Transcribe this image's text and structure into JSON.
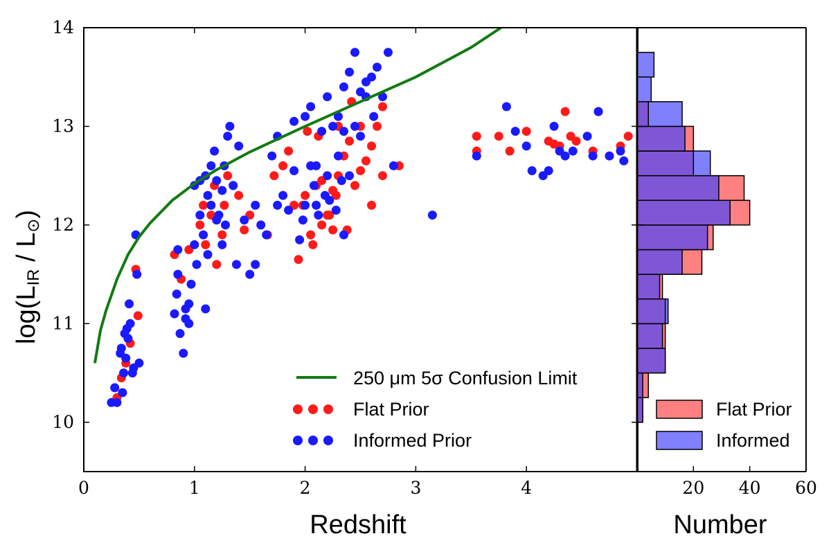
{
  "colors": {
    "flat": "#ff1a1a",
    "informed": "#1a1aff",
    "limit": "#127a12",
    "hist_flat": "#ff8080",
    "hist_informed": "#7f56d6",
    "hist_informed_only": "#8080ff"
  },
  "chart_data": [
    {
      "type": "scatter",
      "xlabel": "Redshift",
      "ylabel_main": "log(L",
      "ylabel_sub": "IR",
      "ylabel_mid": " / L",
      "ylabel_sun": "⊙",
      "ylabel_end": ")",
      "xlim": [
        0,
        5.0
      ],
      "ylim": [
        9.5,
        14.0
      ],
      "xticks": [
        0,
        1,
        2,
        3,
        4
      ],
      "yticks": [
        10,
        11,
        12,
        13,
        14
      ],
      "legend": {
        "limit_label": "250 μm 5σ Confusion Limit",
        "flat_label": "Flat Prior",
        "informed_label": "Informed Prior"
      },
      "confusion_limit": {
        "x": [
          0.1,
          0.15,
          0.2,
          0.3,
          0.4,
          0.5,
          0.6,
          0.8,
          1.0,
          1.2,
          1.5,
          2.0,
          2.5,
          3.0,
          3.5,
          3.77
        ],
        "y": [
          10.6,
          10.93,
          11.13,
          11.45,
          11.7,
          11.88,
          12.02,
          12.25,
          12.42,
          12.56,
          12.74,
          13.0,
          13.25,
          13.5,
          13.8,
          14.0
        ]
      },
      "series": [
        {
          "name": "Flat Prior",
          "points": [
            [
              0.34,
              10.45
            ],
            [
              0.38,
              10.6
            ],
            [
              0.42,
              10.8
            ],
            [
              0.47,
              11.55
            ],
            [
              0.49,
              11.08
            ],
            [
              0.3,
              10.25
            ],
            [
              0.82,
              11.7
            ],
            [
              0.88,
              11.45
            ],
            [
              0.95,
              11.75
            ],
            [
              1.05,
              12.0
            ],
            [
              1.1,
              11.8
            ],
            [
              1.15,
              12.1
            ],
            [
              1.2,
              11.6
            ],
            [
              1.27,
              12.2
            ],
            [
              1.3,
              12.5
            ],
            [
              1.35,
              12.4
            ],
            [
              1.4,
              12.3
            ],
            [
              1.45,
              11.95
            ],
            [
              1.5,
              12.1
            ],
            [
              1.18,
              12.4
            ],
            [
              1.25,
              11.9
            ],
            [
              1.08,
              12.2
            ],
            [
              1.66,
              11.9
            ],
            [
              1.72,
              12.5
            ],
            [
              1.8,
              12.6
            ],
            [
              1.85,
              12.75
            ],
            [
              1.9,
              12.2
            ],
            [
              1.94,
              11.65
            ],
            [
              2.0,
              12.3
            ],
            [
              2.05,
              11.9
            ],
            [
              2.1,
              12.4
            ],
            [
              2.15,
              12.0
            ],
            [
              2.2,
              12.1
            ],
            [
              2.25,
              11.95
            ],
            [
              2.3,
              12.5
            ],
            [
              2.35,
              12.7
            ],
            [
              2.4,
              12.85
            ],
            [
              2.45,
              12.4
            ],
            [
              2.5,
              12.55
            ],
            [
              2.55,
              12.65
            ],
            [
              2.6,
              12.8
            ],
            [
              2.65,
              13.0
            ],
            [
              2.7,
              12.5
            ],
            [
              2.5,
              13.0
            ],
            [
              2.3,
              13.0
            ],
            [
              2.12,
              12.9
            ],
            [
              2.02,
              12.95
            ],
            [
              2.22,
              12.1
            ],
            [
              2.28,
              12.3
            ],
            [
              2.15,
              12.45
            ],
            [
              2.42,
              13.25
            ],
            [
              2.7,
              13.2
            ],
            [
              2.85,
              12.6
            ],
            [
              2.6,
              12.2
            ],
            [
              2.07,
              11.8
            ],
            [
              2.25,
              12.35
            ],
            [
              1.98,
              12.2
            ],
            [
              2.38,
              11.95
            ],
            [
              3.55,
              12.9
            ],
            [
              3.55,
              12.75
            ],
            [
              3.75,
              12.9
            ],
            [
              3.85,
              12.75
            ],
            [
              4.0,
              12.95
            ],
            [
              4.2,
              12.85
            ],
            [
              4.25,
              12.82
            ],
            [
              4.3,
              12.8
            ],
            [
              4.4,
              12.9
            ],
            [
              4.45,
              12.85
            ],
            [
              4.35,
              13.15
            ],
            [
              4.6,
              12.75
            ],
            [
              4.65,
              13.15
            ],
            [
              4.75,
              12.7
            ],
            [
              4.85,
              12.8
            ],
            [
              4.92,
              12.9
            ]
          ]
        },
        {
          "name": "Informed Prior",
          "points": [
            [
              0.25,
              10.2
            ],
            [
              0.28,
              10.35
            ],
            [
              0.3,
              10.2
            ],
            [
              0.35,
              10.3
            ],
            [
              0.36,
              10.5
            ],
            [
              0.38,
              10.65
            ],
            [
              0.4,
              10.85
            ],
            [
              0.42,
              11.0
            ],
            [
              0.45,
              10.55
            ],
            [
              0.37,
              10.9
            ],
            [
              0.34,
              10.75
            ],
            [
              0.41,
              11.2
            ],
            [
              0.44,
              10.5
            ],
            [
              0.48,
              11.5
            ],
            [
              0.5,
              10.6
            ],
            [
              0.47,
              11.9
            ],
            [
              0.33,
              10.7
            ],
            [
              0.39,
              10.95
            ],
            [
              0.82,
              11.1
            ],
            [
              0.84,
              11.3
            ],
            [
              0.85,
              11.5
            ],
            [
              0.87,
              10.9
            ],
            [
              0.9,
              10.7
            ],
            [
              0.92,
              11.05
            ],
            [
              0.95,
              11.2
            ],
            [
              0.97,
              11.4
            ],
            [
              1.0,
              11.8
            ],
            [
              1.02,
              11.6
            ],
            [
              1.05,
              12.1
            ],
            [
              1.08,
              11.9
            ],
            [
              1.1,
              12.5
            ],
            [
              1.12,
              12.3
            ],
            [
              1.15,
              12.2
            ],
            [
              1.18,
              12.75
            ],
            [
              1.2,
              12.45
            ],
            [
              1.22,
              12.1
            ],
            [
              1.25,
              11.8
            ],
            [
              1.27,
              12.6
            ],
            [
              1.3,
              12.9
            ],
            [
              1.32,
              13.0
            ],
            [
              1.35,
              12.4
            ],
            [
              1.38,
              11.6
            ],
            [
              1.4,
              12.8
            ],
            [
              1.45,
              12.05
            ],
            [
              1.5,
              11.5
            ],
            [
              1.55,
              11.6
            ],
            [
              1.0,
              12.4
            ],
            [
              1.1,
              11.15
            ],
            [
              0.85,
              11.75
            ],
            [
              0.95,
              11.0
            ],
            [
              1.12,
              11.7
            ],
            [
              1.2,
              12.05
            ],
            [
              1.25,
              12.35
            ],
            [
              1.7,
              12.7
            ],
            [
              1.75,
              12.9
            ],
            [
              1.8,
              12.3
            ],
            [
              1.85,
              12.15
            ],
            [
              1.9,
              12.55
            ],
            [
              1.95,
              11.85
            ],
            [
              2.0,
              13.1
            ],
            [
              2.05,
              12.6
            ],
            [
              2.1,
              12.2
            ],
            [
              2.15,
              12.95
            ],
            [
              2.2,
              12.5
            ],
            [
              2.25,
              13.0
            ],
            [
              2.3,
              12.7
            ],
            [
              2.35,
              13.4
            ],
            [
              2.4,
              13.55
            ],
            [
              2.45,
              13.75
            ],
            [
              2.5,
              13.35
            ],
            [
              2.55,
              13.3
            ],
            [
              2.6,
              13.5
            ],
            [
              2.65,
              13.6
            ],
            [
              2.7,
              13.3
            ],
            [
              2.75,
              13.75
            ],
            [
              2.0,
              12.2
            ],
            [
              2.08,
              12.4
            ],
            [
              2.12,
              12.1
            ],
            [
              2.18,
              12.3
            ],
            [
              2.28,
              12.15
            ],
            [
              2.33,
              12.45
            ],
            [
              1.98,
              12.05
            ],
            [
              2.1,
              12.6
            ],
            [
              2.22,
              12.25
            ],
            [
              2.4,
              12.5
            ],
            [
              2.45,
              13.0
            ],
            [
              2.3,
              13.1
            ],
            [
              2.2,
              13.3
            ],
            [
              2.05,
              13.2
            ],
            [
              1.9,
              13.05
            ],
            [
              2.8,
              12.6
            ],
            [
              3.15,
              12.1
            ],
            [
              3.55,
              12.7
            ],
            [
              3.82,
              13.2
            ],
            [
              3.9,
              12.95
            ],
            [
              4.0,
              12.8
            ],
            [
              4.05,
              12.55
            ],
            [
              4.15,
              12.5
            ],
            [
              4.2,
              12.55
            ],
            [
              4.25,
              13.0
            ],
            [
              4.3,
              12.75
            ],
            [
              4.35,
              12.7
            ],
            [
              4.42,
              12.75
            ],
            [
              4.55,
              12.9
            ],
            [
              4.6,
              12.7
            ],
            [
              4.65,
              13.15
            ],
            [
              4.75,
              12.7
            ],
            [
              4.85,
              12.75
            ],
            [
              4.88,
              12.65
            ],
            [
              1.55,
              12.2
            ],
            [
              1.6,
              12.0
            ],
            [
              1.65,
              11.9
            ],
            [
              1.75,
              12.2
            ],
            [
              2.35,
              12.95
            ],
            [
              2.55,
              13.45
            ],
            [
              2.62,
              13.1
            ],
            [
              2.5,
              12.9
            ],
            [
              2.35,
              11.9
            ],
            [
              1.05,
              12.45
            ],
            [
              1.15,
              12.6
            ],
            [
              1.28,
              12.0
            ],
            [
              0.92,
              11.15
            ]
          ]
        }
      ]
    },
    {
      "type": "bar",
      "orientation": "horizontal",
      "xlabel": "Number",
      "xlim": [
        0,
        60
      ],
      "xticks": [
        20,
        40,
        60
      ],
      "bins": [
        [
          10.0,
          10.25
        ],
        [
          10.25,
          10.5
        ],
        [
          10.5,
          10.75
        ],
        [
          10.75,
          11.0
        ],
        [
          11.0,
          11.25
        ],
        [
          11.25,
          11.5
        ],
        [
          11.5,
          11.75
        ],
        [
          11.75,
          12.0
        ],
        [
          12.0,
          12.25
        ],
        [
          12.25,
          12.5
        ],
        [
          12.5,
          12.75
        ],
        [
          12.75,
          13.0
        ],
        [
          13.0,
          13.25
        ],
        [
          13.25,
          13.5
        ],
        [
          13.5,
          13.75
        ]
      ],
      "series": [
        {
          "name": "Flat Prior",
          "values": [
            2,
            4,
            10,
            10,
            10,
            9,
            23,
            27,
            40,
            38,
            20,
            20,
            4,
            0,
            0
          ]
        },
        {
          "name": "Informed",
          "values": [
            2,
            2,
            10,
            9,
            11,
            8,
            16,
            25,
            33,
            29,
            26,
            17,
            16,
            5,
            6
          ]
        }
      ],
      "legend": {
        "flat_label": "Flat Prior",
        "informed_label": "Informed"
      }
    }
  ]
}
